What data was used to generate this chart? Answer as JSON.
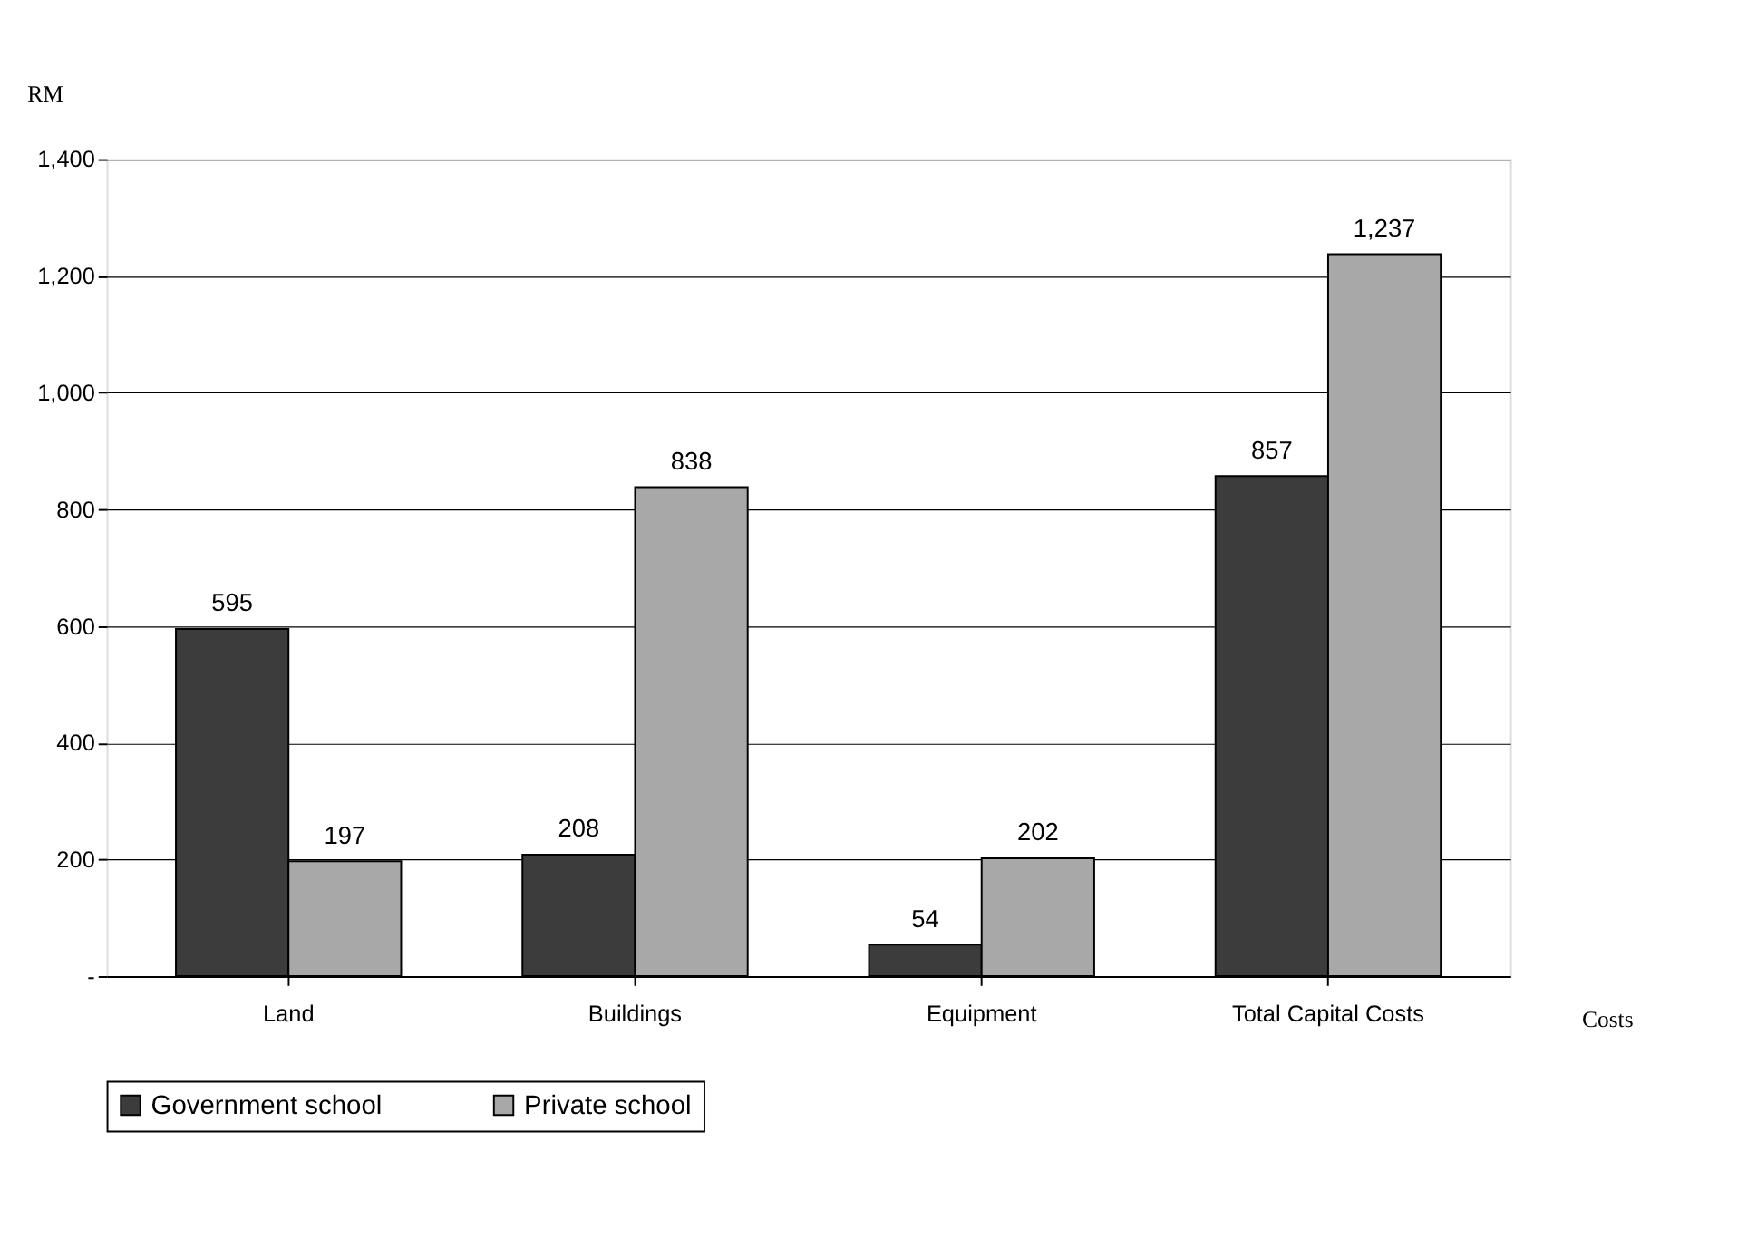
{
  "chart_data": {
    "type": "bar",
    "categories": [
      "Land",
      "Buildings",
      "Equipment",
      "Total Capital Costs"
    ],
    "series": [
      {
        "name": "Government school",
        "color": "#3c3c3c",
        "values": [
          595,
          208,
          54,
          857
        ]
      },
      {
        "name": "Private school",
        "color": "#a8a8a8",
        "values": [
          197,
          838,
          202,
          1237
        ]
      }
    ],
    "value_labels": [
      [
        "595",
        "208",
        "54",
        "857"
      ],
      [
        "197",
        "838",
        "202",
        "1,237"
      ]
    ],
    "ylabel": "RM",
    "xlabel": "Costs",
    "ylim": [
      0,
      1400
    ],
    "yticks": [
      {
        "value": 0,
        "label": "-"
      },
      200,
      400,
      600,
      800,
      {
        "value": 1000,
        "label": "1,000"
      },
      {
        "value": 1200,
        "label": "1,200"
      },
      {
        "value": 1400,
        "label": "1,400"
      }
    ],
    "grid": "y",
    "legend": "bottom"
  }
}
